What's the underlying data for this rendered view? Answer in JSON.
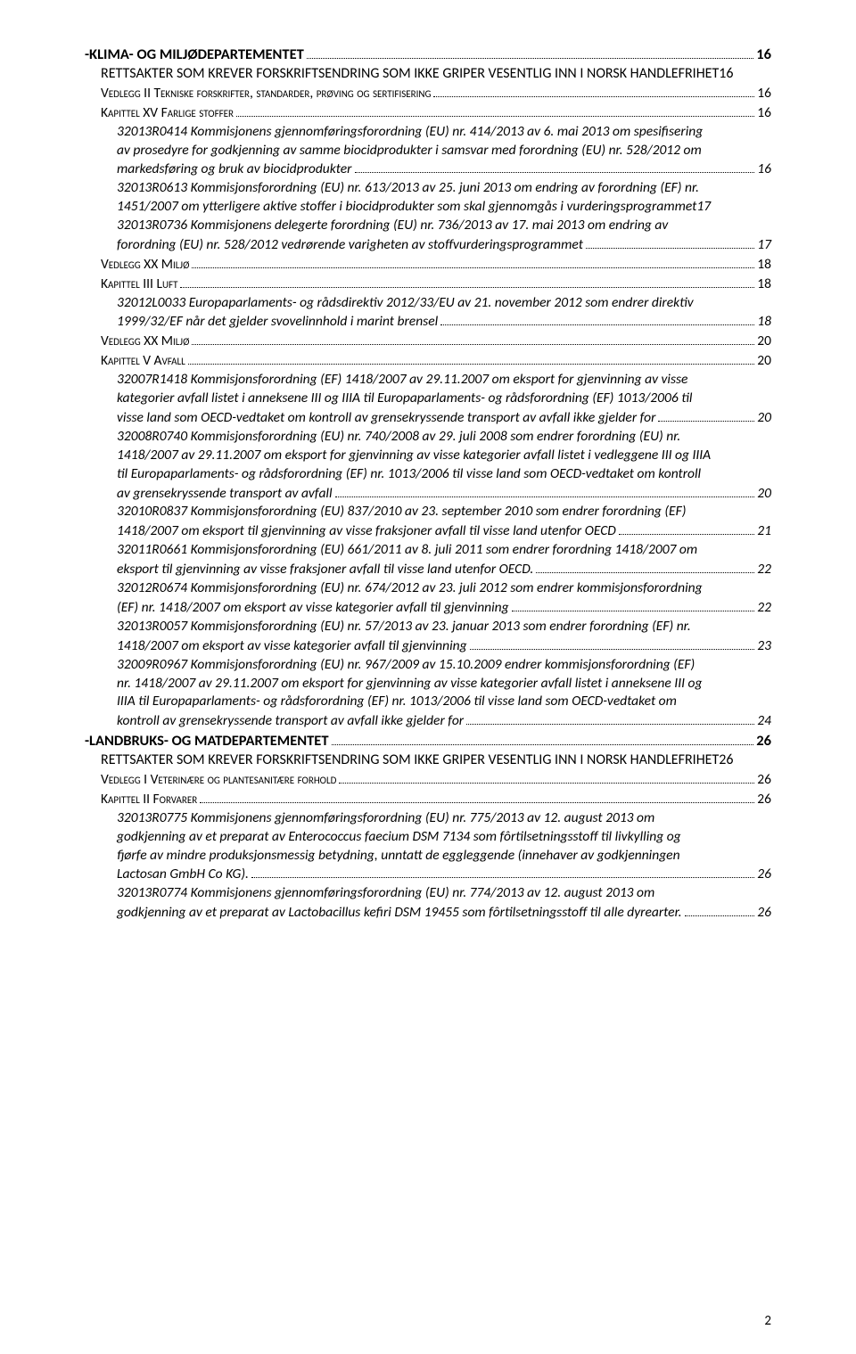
{
  "entries": [
    {
      "level": 0,
      "style": "bold",
      "text": "-KLIMA- OG MILJØDEPARTEMENTET",
      "page": "16"
    },
    {
      "level": 1,
      "style": "plain",
      "text": "RETTSAKTER SOM KREVER FORSKRIFTSENDRING SOM IKKE GRIPER VESENTLIG INN I NORSK HANDLEFRIHET",
      "page": "16",
      "nolead": true
    },
    {
      "level": 2,
      "style": "sc",
      "text": "Vedlegg II Tekniske forskrifter, standarder, prøving og sertifisering",
      "page": "16"
    },
    {
      "level": 2,
      "style": "sc",
      "text": "Kapittel XV Farlige stoffer",
      "page": "16"
    },
    {
      "level": 3,
      "style": "italic",
      "lines": [
        "32013R0414 Kommisjonens gjennomføringsforordning (EU) nr. 414/2013 av 6. mai 2013 om spesifisering",
        "av prosedyre for godkjenning av samme biocidprodukter i samsvar med forordning (EU) nr. 528/2012 om"
      ],
      "lastline": "markedsføring og bruk av biocidprodukter",
      "page": "16"
    },
    {
      "level": 3,
      "style": "italic",
      "lines": [
        "32013R0613 Kommisjonsforordning (EU) nr. 613/2013 av 25. juni 2013 om endring av forordning (EF) nr."
      ],
      "lastline": "1451/2007 om ytterligere aktive stoffer i biocidprodukter som skal gjennomgås i vurderingsprogrammet",
      "page": "17",
      "nolead": true
    },
    {
      "level": 3,
      "style": "italic",
      "lines": [
        "32013R0736 Kommisjonens delegerte forordning (EU) nr. 736/2013 av 17. mai 2013 om endring av"
      ],
      "lastline": "forordning (EU) nr. 528/2012 vedrørende varigheten av stoffvurderingsprogrammet",
      "page": "17"
    },
    {
      "level": 2,
      "style": "sc",
      "text": "Vedlegg XX Miljø",
      "page": "18"
    },
    {
      "level": 2,
      "style": "sc",
      "text": "Kapittel III Luft",
      "page": "18"
    },
    {
      "level": 3,
      "style": "italic",
      "lines": [
        "32012L0033 Europaparlaments- og rådsdirektiv 2012/33/EU av 21. november 2012 som endrer direktiv"
      ],
      "lastline": "1999/32/EF når det gjelder svovelinnhold i marint brensel",
      "page": "18"
    },
    {
      "level": 2,
      "style": "sc",
      "text": "Vedlegg XX Miljø",
      "page": "20"
    },
    {
      "level": 2,
      "style": "sc",
      "text": "Kapittel V Avfall",
      "page": "20"
    },
    {
      "level": 3,
      "style": "italic",
      "lines": [
        "32007R1418 Kommisjonsforordning (EF) 1418/2007 av 29.11.2007 om eksport for gjenvinning av visse",
        "kategorier avfall listet i anneksene III og IIIA til Europaparlaments- og rådsforordning (EF) 1013/2006 til"
      ],
      "lastline": "visse land som OECD-vedtaket om kontroll av grensekryssende transport av avfall ikke gjelder for",
      "page": "20"
    },
    {
      "level": 3,
      "style": "italic",
      "lines": [
        "32008R0740 Kommisjonsforordning (EU) nr. 740/2008 av 29. juli 2008 som endrer forordning (EU) nr.",
        "1418/2007 av 29.11.2007 om eksport for gjenvinning av visse kategorier avfall listet i vedleggene III og IIIA",
        "til Europaparlaments- og rådsforordning (EF) nr. 1013/2006 til visse land som OECD-vedtaket om kontroll"
      ],
      "lastline": "av grensekryssende transport av avfall",
      "page": "20"
    },
    {
      "level": 3,
      "style": "italic",
      "lines": [
        "32010R0837 Kommisjonsforordning (EU) 837/2010 av 23. september 2010 som endrer forordning (EF)"
      ],
      "lastline": "1418/2007 om eksport til gjenvinning av visse fraksjoner avfall til visse land utenfor OECD",
      "page": "21"
    },
    {
      "level": 3,
      "style": "italic",
      "lines": [
        "32011R0661 Kommisjonsforordning (EU) 661/2011 av 8. juli 2011 som endrer forordning 1418/2007 om"
      ],
      "lastline": "eksport til gjenvinning av visse fraksjoner avfall til visse land utenfor OECD.",
      "page": "22"
    },
    {
      "level": 3,
      "style": "italic",
      "lines": [
        "32012R0674 Kommisjonsforordning (EU) nr. 674/2012 av 23. juli 2012 som endrer kommisjonsforordning"
      ],
      "lastline": "(EF) nr. 1418/2007 om eksport av visse kategorier avfall til gjenvinning",
      "page": "22"
    },
    {
      "level": 3,
      "style": "italic",
      "lines": [
        "32013R0057 Kommisjonsforordning (EU) nr. 57/2013 av 23. januar 2013 som endrer forordning (EF) nr."
      ],
      "lastline": "1418/2007 om eksport av visse kategorier avfall til gjenvinning",
      "page": "23"
    },
    {
      "level": 3,
      "style": "italic",
      "lines": [
        "32009R0967 Kommisjonsforordning (EU) nr. 967/2009 av 15.10.2009 endrer kommisjonsforordning (EF)",
        "nr. 1418/2007 av 29.11.2007 om eksport for gjenvinning av visse kategorier avfall listet i anneksene III og",
        "IIIA til Europaparlaments- og rådsforordning (EF) nr. 1013/2006 til visse land som OECD-vedtaket om"
      ],
      "lastline": "kontroll av grensekryssende transport av avfall ikke gjelder for",
      "page": "24"
    },
    {
      "level": 0,
      "style": "bold",
      "text": "-LANDBRUKS- OG MATDEPARTEMENTET",
      "page": "26"
    },
    {
      "level": 1,
      "style": "plain",
      "text": "RETTSAKTER SOM KREVER FORSKRIFTSENDRING SOM IKKE GRIPER VESENTLIG INN I NORSK HANDLEFRIHET",
      "page": "26",
      "nolead": true
    },
    {
      "level": 2,
      "style": "sc",
      "text": "Vedlegg I Veterinære og plantesanitære forhold",
      "page": "26"
    },
    {
      "level": 2,
      "style": "sc",
      "text": "Kapittel II Forvarer",
      "page": "26"
    },
    {
      "level": 3,
      "style": "italic",
      "lines": [
        "32013R0775 Kommisjonens gjennomføringsforordning (EU) nr. 775/2013 av 12. august 2013 om",
        "godkjenning av et preparat av Enterococcus faecium DSM 7134 som fôrtilsetningsstoff til livkylling og",
        "fjørfe av mindre produksjonsmessig betydning, unntatt de eggleggende (innehaver av godkjenningen"
      ],
      "lastline": "Lactosan GmbH Co KG).",
      "page": "26"
    },
    {
      "level": 3,
      "style": "italic",
      "lines": [
        "32013R0774 Kommisjonens gjennomføringsforordning (EU) nr. 774/2013 av 12. august 2013 om"
      ],
      "lastline": "godkjenning av et preparat av Lactobacillus kefiri DSM 19455 som fôrtilsetningsstoff til alle dyrearter.",
      "page": "26"
    }
  ],
  "pageNumber": "2"
}
